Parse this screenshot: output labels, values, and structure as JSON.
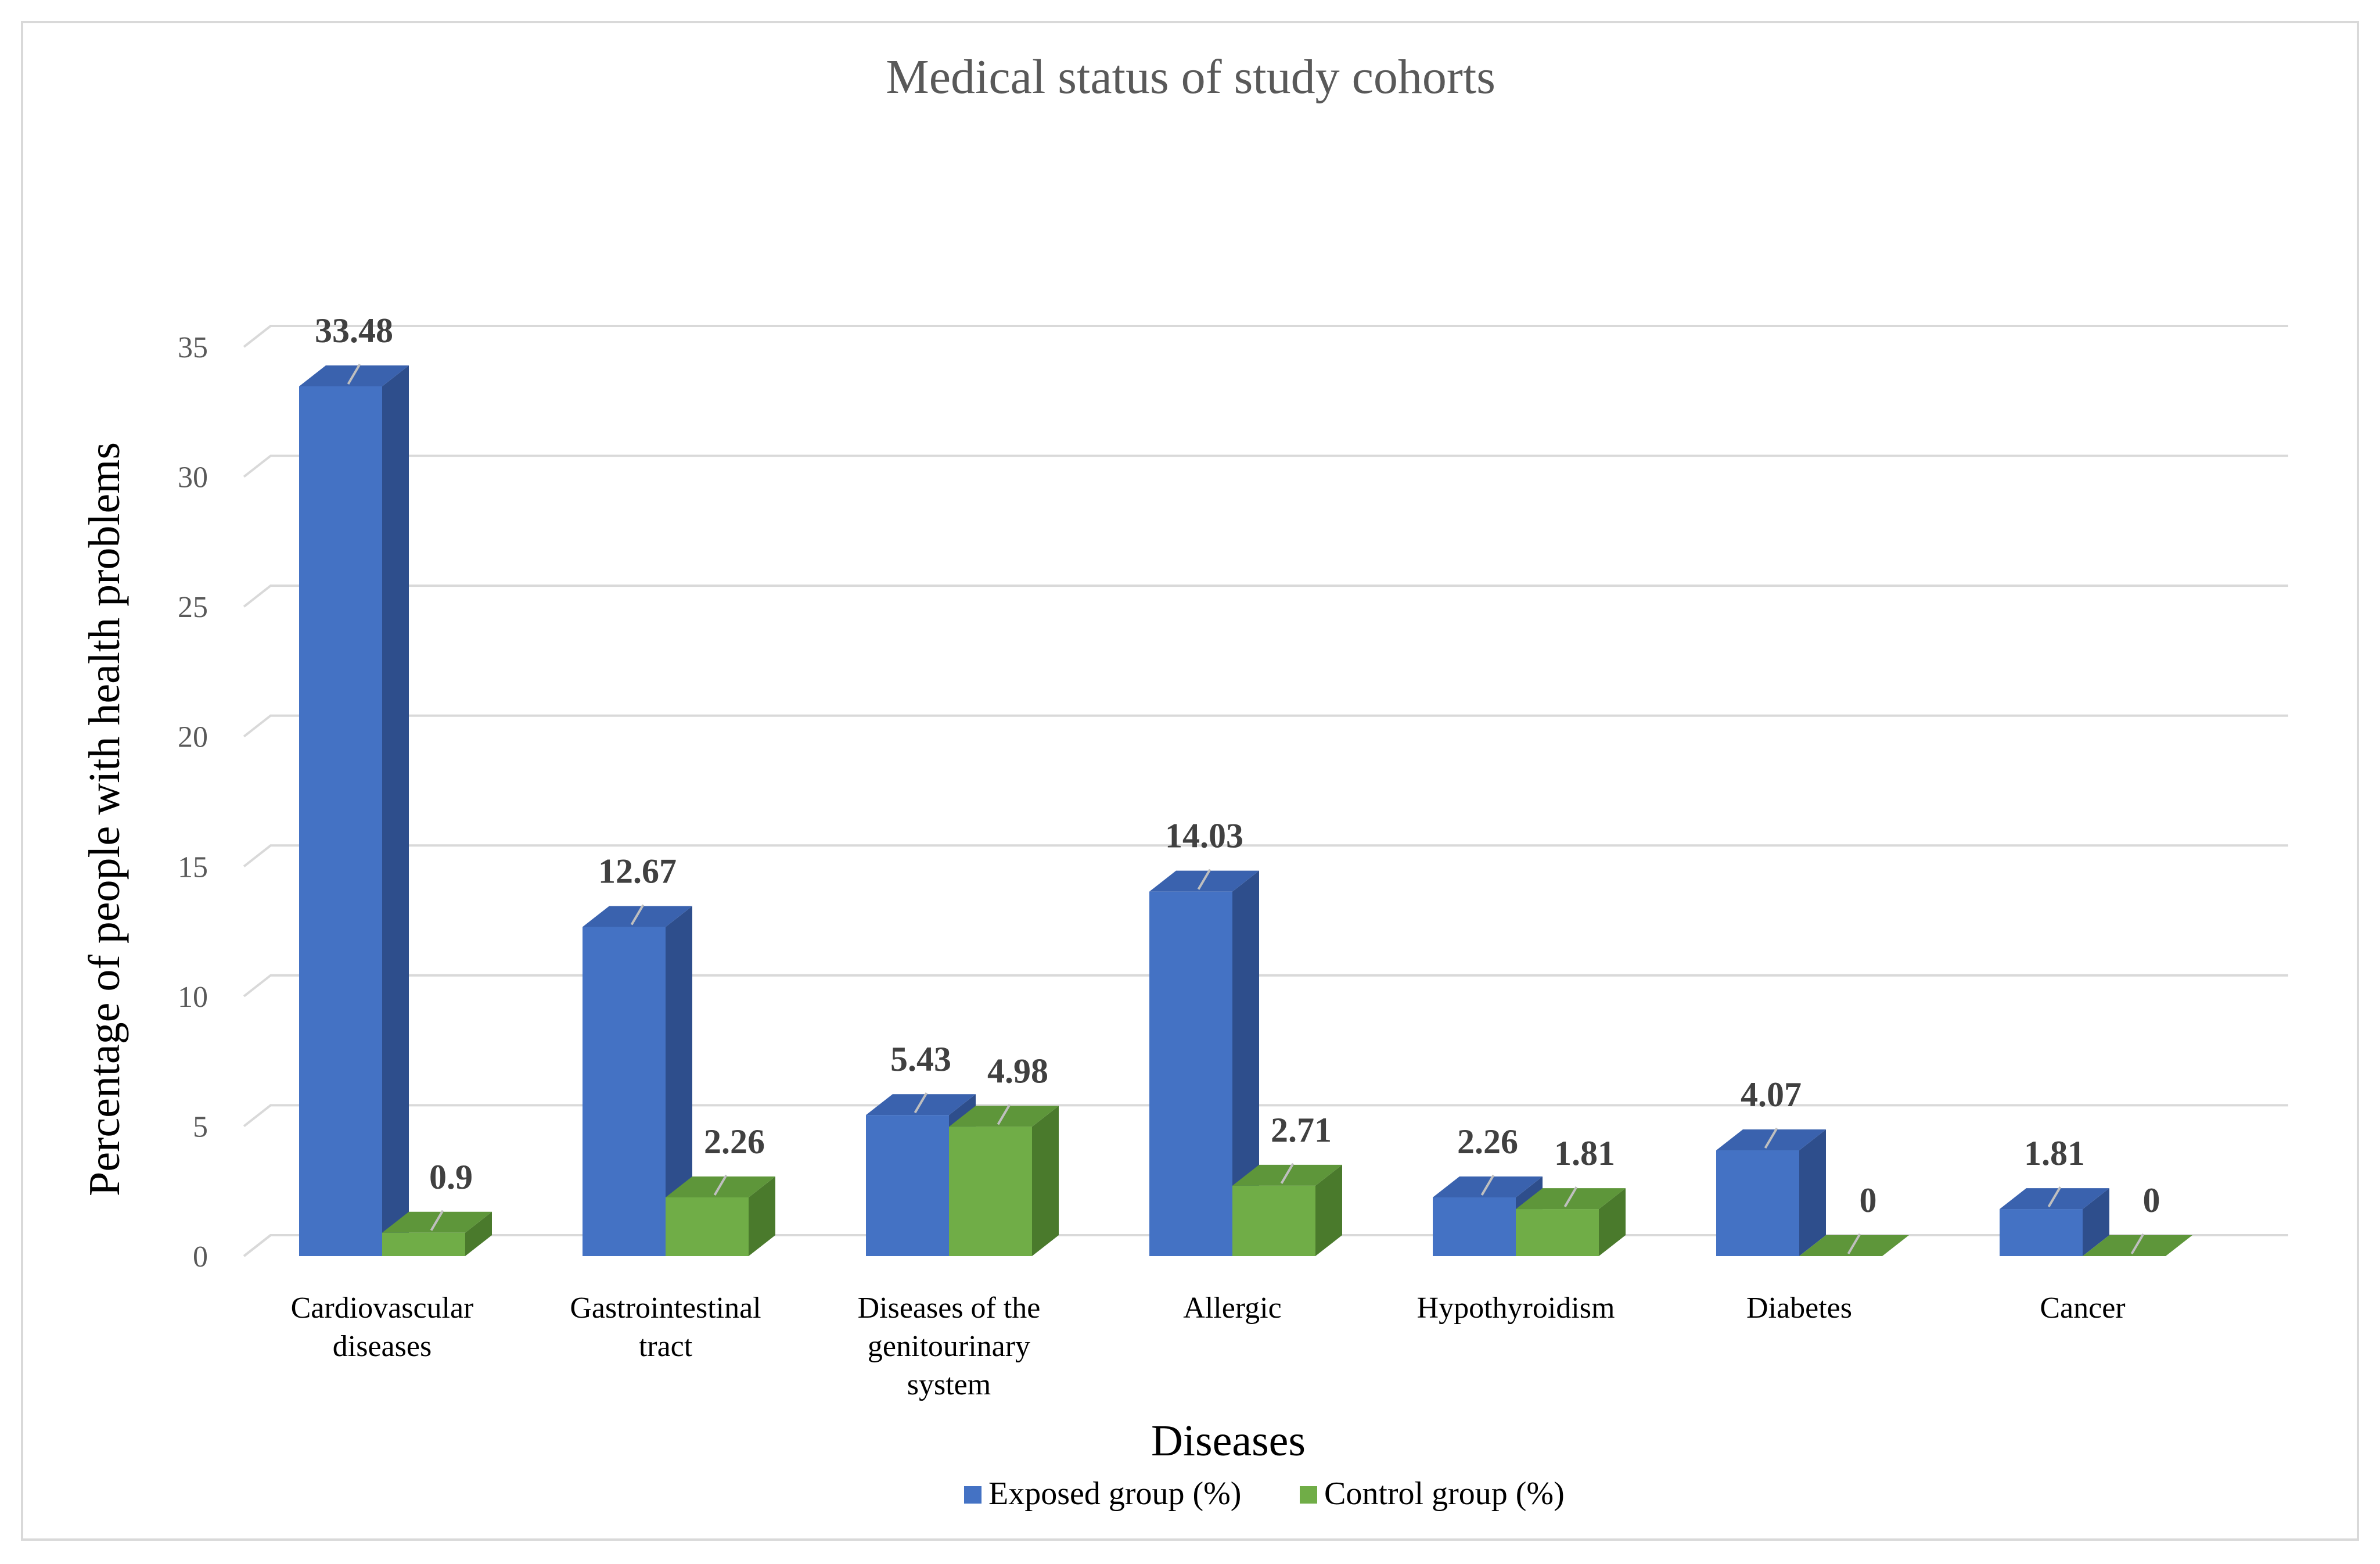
{
  "chart_data": {
    "type": "bar",
    "title": "Medical status of study cohorts",
    "xlabel": "Diseases",
    "ylabel": "Percentage of people with health problems",
    "ylim": [
      0,
      35
    ],
    "yticks": [
      0,
      5,
      10,
      15,
      20,
      25,
      30,
      35
    ],
    "grid": true,
    "legend_position": "bottom-center",
    "categories": [
      [
        "Cardiovascular",
        "diseases"
      ],
      [
        "Gastrointestinal",
        "tract"
      ],
      [
        "Diseases of the",
        "genitourinary",
        "system"
      ],
      [
        "Allergic"
      ],
      [
        "Hypothyroidism"
      ],
      [
        "Diabetes"
      ],
      [
        "Cancer"
      ]
    ],
    "series": [
      {
        "name": "Exposed group (%)",
        "values": [
          33.48,
          12.67,
          5.43,
          14.03,
          2.26,
          4.07,
          1.81
        ],
        "labels": [
          "33.48",
          "12.67",
          "5.43",
          "14.03",
          "2.26",
          "4.07",
          "1.81"
        ],
        "color": "#4472C4",
        "side_color": "#2E4E8C",
        "top_color": "#3A62AE"
      },
      {
        "name": "Control group (%)",
        "values": [
          0.9,
          2.26,
          4.98,
          2.71,
          1.81,
          0,
          0
        ],
        "labels": [
          "0.9",
          "2.26",
          "4.98",
          "2.71",
          "1.81",
          "0",
          "0"
        ],
        "color": "#70AD47",
        "side_color": "#4A7A2C",
        "top_color": "#5E963A"
      }
    ]
  }
}
